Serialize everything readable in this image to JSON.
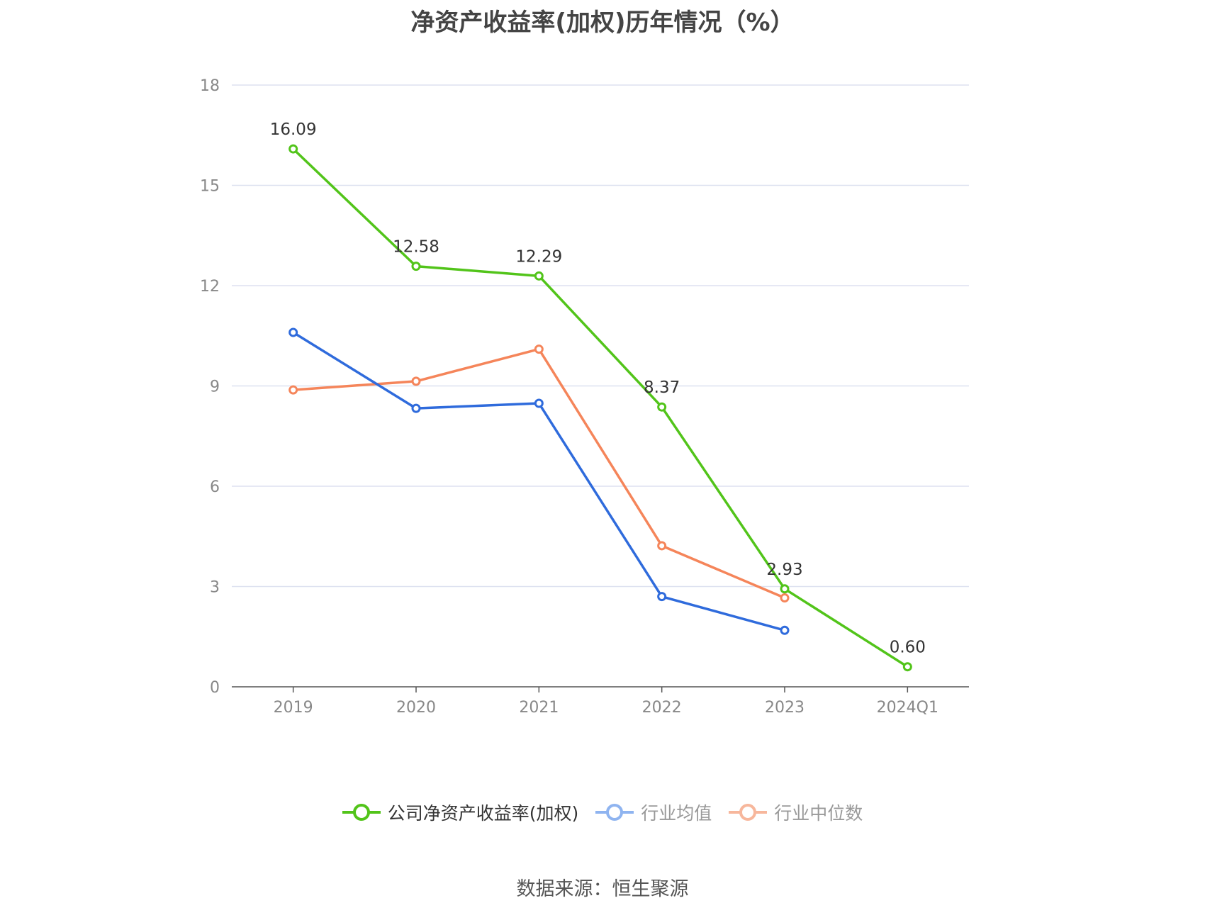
{
  "chart_data": {
    "type": "line",
    "title": "净资产收益率(加权)历年情况（%）",
    "categories": [
      "2019",
      "2020",
      "2021",
      "2022",
      "2023",
      "2024Q1"
    ],
    "ylim": [
      0,
      18
    ],
    "yticks": [
      0,
      3,
      6,
      9,
      12,
      15,
      18
    ],
    "grid": true,
    "legend_position": "bottom",
    "series": [
      {
        "name": "公司净资产收益率(加权)",
        "color": "#52c41a",
        "values": [
          16.09,
          12.58,
          12.29,
          8.37,
          2.93,
          0.6
        ],
        "labels": [
          "16.09",
          "12.58",
          "12.29",
          "8.37",
          "2.93",
          "0.60"
        ]
      },
      {
        "name": "行业均值",
        "color": "#2f6bdc",
        "values": [
          10.6,
          8.33,
          8.48,
          2.7,
          1.69,
          null
        ]
      },
      {
        "name": "行业中位数",
        "color": "#f5855a",
        "values": [
          8.88,
          9.14,
          10.1,
          4.22,
          2.66,
          null
        ]
      }
    ],
    "legend_colors": [
      "#52c41a",
      "#8fb4f0",
      "#f7b79c"
    ],
    "legend_text_colors": [
      "#333333",
      "#999999",
      "#999999"
    ]
  },
  "source": "数据来源：恒生聚源"
}
